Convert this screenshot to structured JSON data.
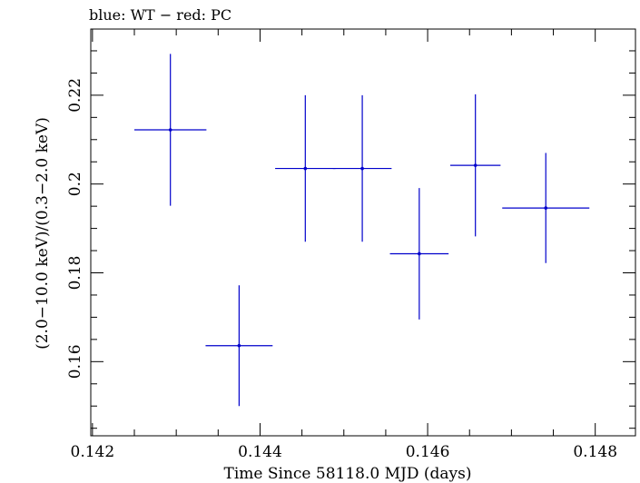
{
  "chart_data": {
    "type": "scatter",
    "title": "blue: WT − red: PC",
    "xlabel": "Time Since 58118.0 MJD (days)",
    "ylabel": "(2.0−10.0 keV)/(0.3−2.0 keV)",
    "xlim": [
      0.14198,
      0.14848
    ],
    "ylim": [
      0.1433,
      0.2349
    ],
    "x_major_ticks": [
      0.142,
      0.144,
      0.146,
      0.148
    ],
    "x_tick_labels": [
      "0.142",
      "0.144",
      "0.146",
      "0.148"
    ],
    "x_minor_step": 0.0005,
    "y_major_ticks": [
      0.16,
      0.18,
      0.2,
      0.22
    ],
    "y_tick_labels": [
      "0.16",
      "0.18",
      "0.2",
      "0.22"
    ],
    "y_minor_step": 0.005,
    "grid": false,
    "series": [
      {
        "name": "WT",
        "color": "#0000cc",
        "points": [
          {
            "x": 0.14293,
            "y": 0.2122,
            "xerr": [
              0.00043,
              0.00043
            ],
            "yerr": [
              0.0171,
              0.0171
            ]
          },
          {
            "x": 0.14375,
            "y": 0.1636,
            "xerr": [
              0.0004,
              0.0004
            ],
            "yerr": [
              0.0136,
              0.0136
            ]
          },
          {
            "x": 0.14454,
            "y": 0.2035,
            "xerr": [
              0.00036,
              0.00036
            ],
            "yerr": [
              0.0165,
              0.0165
            ]
          },
          {
            "x": 0.14522,
            "y": 0.2035,
            "xerr": [
              0.00035,
              0.00035
            ],
            "yerr": [
              0.0165,
              0.0165
            ]
          },
          {
            "x": 0.1459,
            "y": 0.1843,
            "xerr": [
              0.00035,
              0.00035
            ],
            "yerr": [
              0.0148,
              0.0148
            ]
          },
          {
            "x": 0.14657,
            "y": 0.2042,
            "xerr": [
              0.0003,
              0.0003
            ],
            "yerr": [
              0.016,
              0.016
            ]
          },
          {
            "x": 0.14741,
            "y": 0.1946,
            "xerr": [
              0.00052,
              0.00052
            ],
            "yerr": [
              0.0124,
              0.0124
            ]
          }
        ]
      }
    ]
  }
}
